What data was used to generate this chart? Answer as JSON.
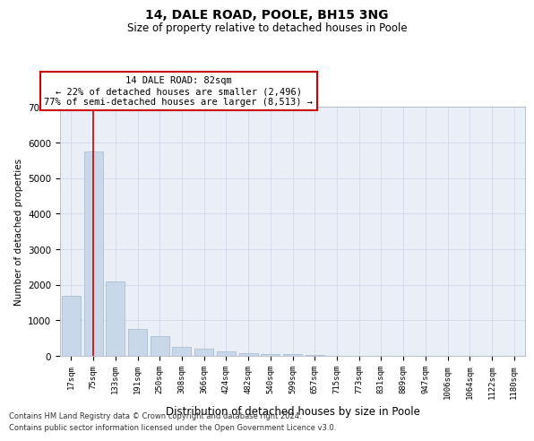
{
  "title1": "14, DALE ROAD, POOLE, BH15 3NG",
  "title2": "Size of property relative to detached houses in Poole",
  "xlabel": "Distribution of detached houses by size in Poole",
  "ylabel": "Number of detached properties",
  "bar_labels": [
    "17sqm",
    "75sqm",
    "133sqm",
    "191sqm",
    "250sqm",
    "308sqm",
    "366sqm",
    "424sqm",
    "482sqm",
    "540sqm",
    "599sqm",
    "657sqm",
    "715sqm",
    "773sqm",
    "831sqm",
    "889sqm",
    "947sqm",
    "1006sqm",
    "1064sqm",
    "1122sqm",
    "1180sqm"
  ],
  "bar_values": [
    1700,
    5750,
    2100,
    750,
    550,
    250,
    195,
    120,
    80,
    60,
    50,
    15,
    10,
    5,
    3,
    2,
    1,
    0,
    0,
    0,
    0
  ],
  "bar_color": "#c8d8e8",
  "bar_edgecolor": "#a0b8cc",
  "red_line_index": 1,
  "annotation_line1": "14 DALE ROAD: 82sqm",
  "annotation_line2": "← 22% of detached houses are smaller (2,496)",
  "annotation_line3": "77% of semi-detached houses are larger (8,513) →",
  "ylim": [
    0,
    7000
  ],
  "yticks": [
    0,
    1000,
    2000,
    3000,
    4000,
    5000,
    6000,
    7000
  ],
  "grid_color": "#d0d8e8",
  "plot_bg_color": "#eaeff7",
  "footer1": "Contains HM Land Registry data © Crown copyright and database right 2024.",
  "footer2": "Contains public sector information licensed under the Open Government Licence v3.0."
}
